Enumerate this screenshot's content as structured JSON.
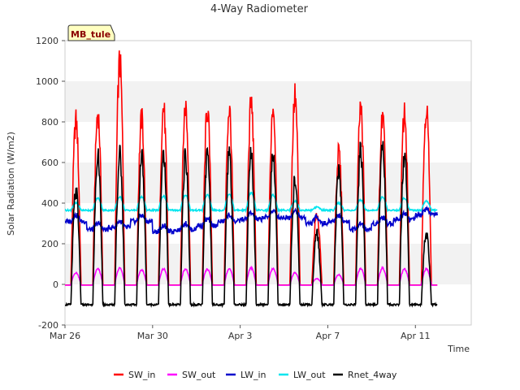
{
  "chart_data": {
    "type": "line",
    "title": "4-Way Radiometer",
    "xlabel": "Time",
    "ylabel": "Solar Radiation (W/m2)",
    "site_label": "MB_tule",
    "ylim": [
      -200,
      1200
    ],
    "yticks": [
      -200,
      0,
      200,
      400,
      600,
      800,
      1000,
      1200
    ],
    "ytick_labels": [
      "-200",
      "0",
      "200",
      "400",
      "600",
      "800",
      "1000",
      "1200"
    ],
    "xlim": [
      "2022-03-26",
      "2022-04-13"
    ],
    "xticks": [
      "2022-03-26",
      "2022-03-30",
      "2022-04-03",
      "2022-04-07",
      "2022-04-11"
    ],
    "xtick_labels": [
      "Mar 26",
      "Mar 30",
      "Apr 3",
      "Apr 7",
      "Apr 11"
    ],
    "data_start": "2022-03-26",
    "data_end": "2022-04-12T00:00",
    "grid": "horizontal bands",
    "legend_position": "bottom",
    "daily_peaks": {
      "dates": [
        "2022-03-26",
        "2022-03-27",
        "2022-03-28",
        "2022-03-29",
        "2022-03-30",
        "2022-03-31",
        "2022-04-01",
        "2022-04-02",
        "2022-04-03",
        "2022-04-04",
        "2022-04-05",
        "2022-04-06",
        "2022-04-07",
        "2022-04-08",
        "2022-04-09",
        "2022-04-10",
        "2022-04-11"
      ],
      "SW_in": [
        870,
        910,
        1180,
        880,
        940,
        950,
        930,
        930,
        965,
        950,
        1000,
        370,
        700,
        940,
        880,
        910,
        940
      ],
      "SW_out": [
        60,
        80,
        85,
        75,
        80,
        80,
        78,
        80,
        85,
        82,
        60,
        30,
        50,
        82,
        85,
        80,
        80
      ],
      "LW_in": [
        340,
        300,
        310,
        340,
        290,
        300,
        320,
        340,
        350,
        360,
        360,
        330,
        340,
        300,
        330,
        350,
        370
      ],
      "LW_out": [
        400,
        425,
        430,
        430,
        435,
        440,
        440,
        445,
        450,
        440,
        410,
        380,
        400,
        415,
        430,
        425,
        410
      ],
      "Rnet_4way": [
        510,
        690,
        700,
        690,
        715,
        690,
        690,
        690,
        690,
        690,
        560,
        280,
        610,
        720,
        740,
        700,
        280
      ]
    },
    "series": [
      {
        "name": "SW_in",
        "color": "#ff0000"
      },
      {
        "name": "SW_out",
        "color": "#ff00ff"
      },
      {
        "name": "LW_in",
        "color": "#0000cc"
      },
      {
        "name": "LW_out",
        "color": "#00e5ee"
      },
      {
        "name": "Rnet_4way",
        "color": "#000000"
      }
    ]
  }
}
